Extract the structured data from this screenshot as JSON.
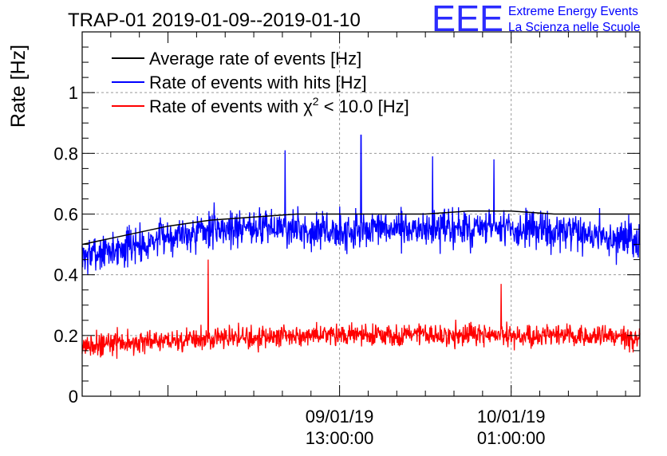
{
  "header": {
    "logo_text": "EEE",
    "logo_line1": "Extreme Energy Events",
    "logo_line2": "La Scienza nelle Scuole"
  },
  "chart_data": {
    "type": "line",
    "title": "TRAP-01 2019-01-09--2019-01-10",
    "ylabel": "Rate [Hz]",
    "xlabel": "",
    "ylim": [
      0,
      1.2
    ],
    "x_range_hours": [
      -5.0,
      34.0
    ],
    "x_ticks": [
      {
        "h": 12.998,
        "label1": "09/01/19",
        "label2": "13:00:00"
      },
      {
        "h": 25.0,
        "label1": "10/01/19",
        "label2": "01:00:00"
      }
    ],
    "y_ticks": [
      {
        "v": 0,
        "label": "0"
      },
      {
        "v": 0.2,
        "label": "0.2"
      },
      {
        "v": 0.4,
        "label": "0.4"
      },
      {
        "v": 0.6,
        "label": "0.6"
      },
      {
        "v": 0.8,
        "label": "0.8"
      },
      {
        "v": 1.0,
        "label": "1"
      }
    ],
    "grid": true,
    "legend_position": "top-left",
    "series": [
      {
        "name": "Average rate of events [Hz]",
        "color": "#000000",
        "x": [
          -5,
          -2,
          1,
          4,
          7,
          10,
          13,
          16,
          19,
          22,
          25,
          28,
          31,
          34
        ],
        "y": [
          0.5,
          0.53,
          0.56,
          0.58,
          0.59,
          0.6,
          0.6,
          0.6,
          0.6,
          0.61,
          0.61,
          0.6,
          0.6,
          0.6
        ]
      },
      {
        "name": "Rate of events with hits [Hz]",
        "color": "#0000ff",
        "noise": {
          "n": 1400,
          "amplitude": 0.065,
          "seed": 7
        },
        "baseline_x": [
          -5,
          -3,
          -1,
          1,
          4,
          7,
          10,
          13,
          16,
          19,
          22,
          25,
          28,
          31,
          34
        ],
        "baseline_y": [
          0.46,
          0.48,
          0.5,
          0.53,
          0.55,
          0.56,
          0.55,
          0.54,
          0.55,
          0.55,
          0.55,
          0.55,
          0.54,
          0.53,
          0.51
        ],
        "peaks": [
          {
            "x": 14.5,
            "y": 0.86
          },
          {
            "x": 9.2,
            "y": 0.81
          },
          {
            "x": 19.5,
            "y": 0.79
          },
          {
            "x": 23.8,
            "y": 0.78
          }
        ]
      },
      {
        "name": "Rate of events with χ² < 10.0 [Hz]",
        "legend_prefix": "Rate of events with ",
        "legend_chi": "χ",
        "legend_sup": "2",
        "legend_suffix": " < 10.0 [Hz]",
        "color": "#ff0000",
        "noise": {
          "n": 1400,
          "amplitude": 0.04,
          "seed": 21
        },
        "baseline_x": [
          -5,
          0,
          5,
          10,
          15,
          20,
          25,
          30,
          34
        ],
        "baseline_y": [
          0.17,
          0.18,
          0.19,
          0.2,
          0.2,
          0.2,
          0.2,
          0.2,
          0.19
        ],
        "peaks": [
          {
            "x": 3.8,
            "y": 0.45
          },
          {
            "x": 24.3,
            "y": 0.37
          }
        ]
      }
    ]
  }
}
